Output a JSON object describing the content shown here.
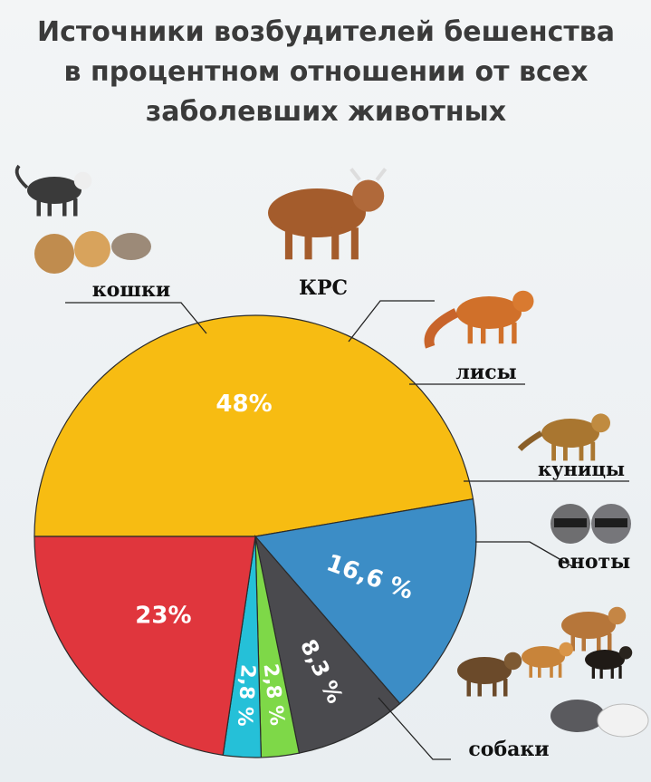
{
  "title_lines": [
    "Источники возбудителей бешенства",
    "в процентном отношении от всех",
    "заболевших животных"
  ],
  "colors": {
    "cats": "#f7bc12",
    "cattle": "#3c8dc6",
    "foxes": "#4a4a4e",
    "martens": "#7ed848",
    "raccoons": "#25c0d8",
    "dogs": "#e0363d"
  },
  "icons": [
    "cat-icon",
    "cow-icon",
    "fox-icon",
    "marten-icon",
    "raccoon-icon",
    "dog-icon"
  ],
  "chart_data": {
    "type": "pie",
    "title": "Источники возбудителей бешенства в процентном отношении от всех заболевших животных",
    "series": [
      {
        "label": "кошки",
        "value": 48,
        "value_label": "48%"
      },
      {
        "label": "КРС",
        "value": 16.6,
        "value_label": "16,6 %"
      },
      {
        "label": "лисы",
        "value": 8.3,
        "value_label": "8,3 %"
      },
      {
        "label": "куницы",
        "value": 2.8,
        "value_label": "2,8 %"
      },
      {
        "label": "еноты",
        "value": 2.8,
        "value_label": "2,8 %"
      },
      {
        "label": "собаки",
        "value": 23,
        "value_label": "23%"
      }
    ]
  }
}
